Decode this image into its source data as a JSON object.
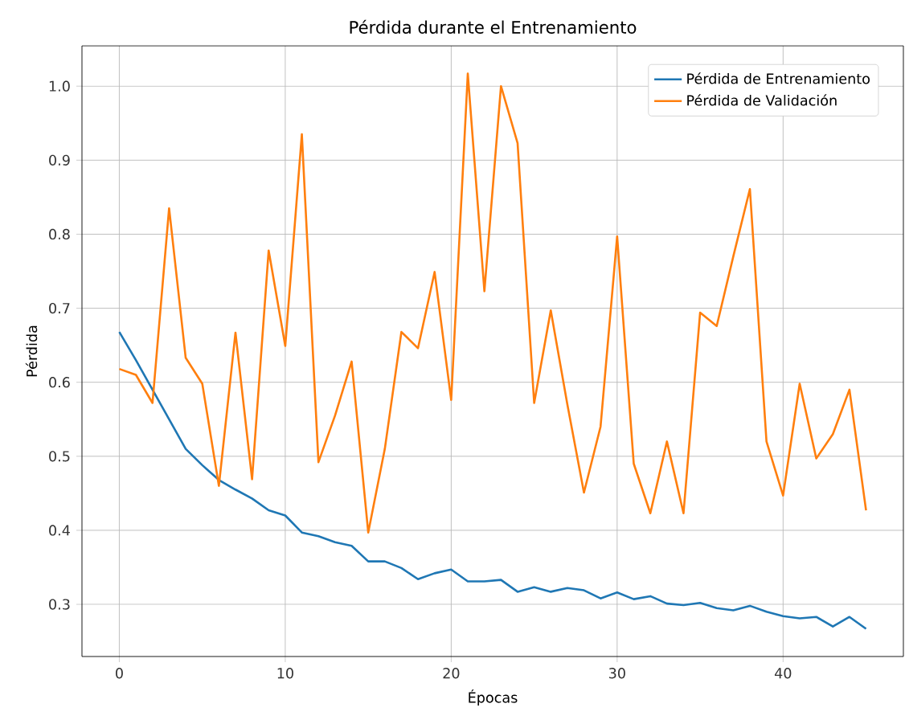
{
  "chart_data": {
    "type": "line",
    "title": "Pérdida durante el Entrenamiento",
    "xlabel": "Épocas",
    "ylabel": "Pérdida",
    "x": [
      0,
      1,
      2,
      3,
      4,
      5,
      6,
      7,
      8,
      9,
      10,
      11,
      12,
      13,
      14,
      15,
      16,
      17,
      18,
      19,
      20,
      21,
      22,
      23,
      24,
      25,
      26,
      27,
      28,
      29,
      30,
      31,
      32,
      33,
      34,
      35,
      36,
      37,
      38,
      39,
      40,
      41,
      42,
      43,
      44,
      45
    ],
    "series": [
      {
        "name": "Pérdida de Entrenamiento",
        "color": "#1f77b4",
        "values": [
          0.668,
          0.63,
          0.59,
          0.55,
          0.51,
          0.488,
          0.468,
          0.455,
          0.443,
          0.427,
          0.42,
          0.397,
          0.392,
          0.384,
          0.379,
          0.358,
          0.358,
          0.349,
          0.334,
          0.342,
          0.347,
          0.331,
          0.331,
          0.333,
          0.317,
          0.323,
          0.317,
          0.322,
          0.319,
          0.308,
          0.316,
          0.307,
          0.311,
          0.301,
          0.299,
          0.302,
          0.295,
          0.292,
          0.298,
          0.29,
          0.284,
          0.281,
          0.283,
          0.27,
          0.283,
          0.267
        ]
      },
      {
        "name": "Pérdida de Validación",
        "color": "#ff7f0e",
        "values": [
          0.618,
          0.61,
          0.572,
          0.835,
          0.633,
          0.598,
          0.46,
          0.667,
          0.469,
          0.778,
          0.649,
          0.935,
          0.492,
          0.555,
          0.628,
          0.397,
          0.51,
          0.668,
          0.646,
          0.749,
          0.576,
          1.017,
          0.723,
          1.0,
          0.923,
          0.572,
          0.697,
          0.57,
          0.451,
          0.54,
          0.797,
          0.49,
          0.423,
          0.52,
          0.423,
          0.694,
          0.676,
          0.77,
          0.861,
          0.52,
          0.447,
          0.598,
          0.497,
          0.53,
          0.59,
          0.427
        ]
      }
    ],
    "xlim": [
      -2.25,
      47.25
    ],
    "ylim": [
      0.2295,
      1.0545
    ],
    "xticks": [
      0,
      10,
      20,
      30,
      40
    ],
    "yticks": [
      {
        "value": 0.3,
        "label": "0.3"
      },
      {
        "value": 0.4,
        "label": "0.4"
      },
      {
        "value": 0.5,
        "label": "0.5"
      },
      {
        "value": 0.6,
        "label": "0.6"
      },
      {
        "value": 0.7,
        "label": "0.7"
      },
      {
        "value": 0.8,
        "label": "0.8"
      },
      {
        "value": 0.9,
        "label": "0.9"
      },
      {
        "value": 1.0,
        "label": "1.0"
      }
    ],
    "grid": true,
    "legend": "top right",
    "marker": "none",
    "line_style": "solid"
  }
}
